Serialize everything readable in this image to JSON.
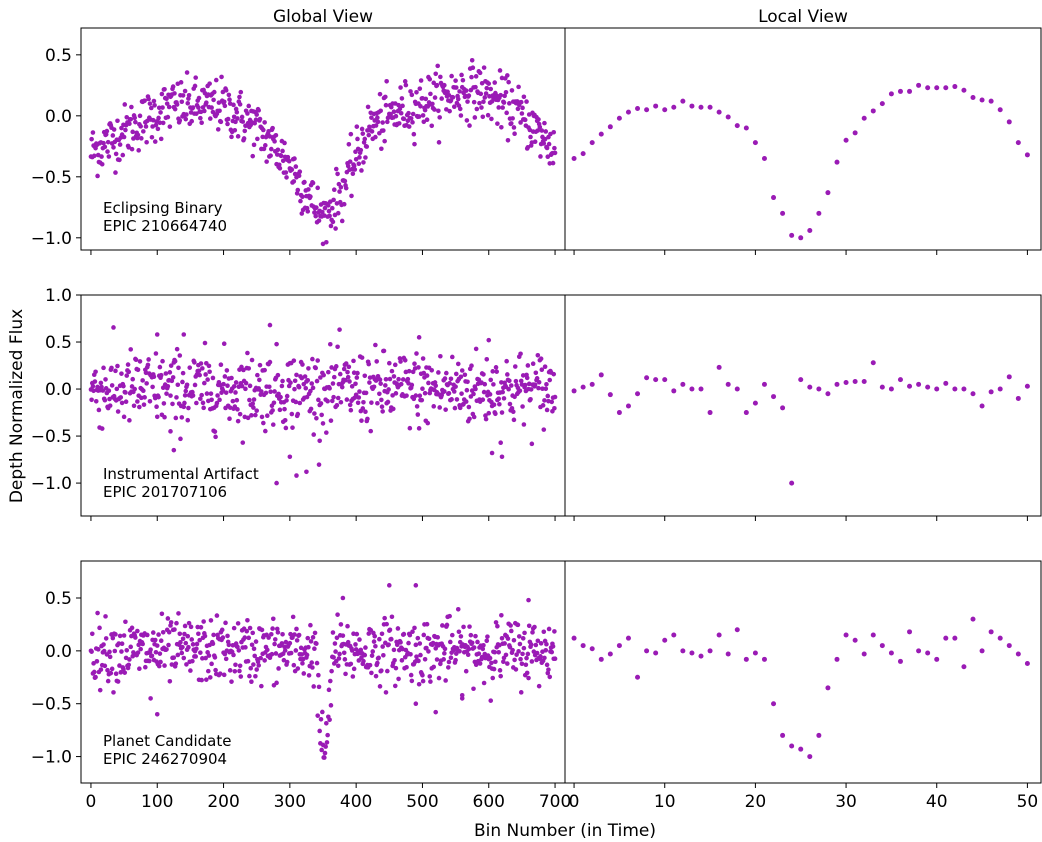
{
  "chart_data": {
    "type": "scatter",
    "marker_color": "#9a1bb5",
    "xlabel": "Bin Number (in Time)",
    "ylabel": "Depth Normalized Flux",
    "column_titles": [
      "Global View",
      "Local View"
    ],
    "global_xticks": [
      0,
      100,
      200,
      300,
      400,
      500,
      600,
      700
    ],
    "local_xticks": [
      0,
      10,
      20,
      30,
      40,
      50
    ],
    "global_xlim": [
      -15,
      715
    ],
    "local_xlim": [
      -1,
      51.5
    ],
    "panels": [
      {
        "label_line1": "Eclipsing Binary",
        "label_line2": "EPIC 210664740",
        "ylim": [
          -1.1,
          0.72
        ],
        "yticks": [
          0.5,
          0.0,
          -0.5,
          -1.0
        ],
        "ytick_labels": [
          "0.5",
          "0.0",
          "−0.5",
          "−1.0"
        ],
        "global_trend": [
          [
            0,
            -0.3
          ],
          [
            60,
            -0.1
          ],
          [
            120,
            0.08
          ],
          [
            200,
            0.08
          ],
          [
            250,
            -0.1
          ],
          [
            300,
            -0.4
          ],
          [
            350,
            -0.85
          ],
          [
            380,
            -0.6
          ],
          [
            420,
            -0.1
          ],
          [
            470,
            0.05
          ],
          [
            520,
            0.15
          ],
          [
            580,
            0.22
          ],
          [
            640,
            0.05
          ],
          [
            700,
            -0.28
          ]
        ],
        "global_scatter": 0.11,
        "local_x": [
          0,
          1,
          2,
          3,
          4,
          5,
          6,
          7,
          8,
          9,
          10,
          11,
          12,
          13,
          14,
          15,
          16,
          17,
          18,
          19,
          20,
          21,
          22,
          23,
          24,
          25,
          26,
          27,
          28,
          29,
          30,
          31,
          32,
          33,
          34,
          35,
          36,
          37,
          38,
          39,
          40,
          41,
          42,
          43,
          44,
          45,
          46,
          47,
          48,
          49,
          50
        ],
        "local_y": [
          -0.35,
          -0.31,
          -0.22,
          -0.15,
          -0.09,
          -0.02,
          0.03,
          0.06,
          0.05,
          0.08,
          0.05,
          0.07,
          0.12,
          0.08,
          0.07,
          0.07,
          0.03,
          -0.01,
          -0.08,
          -0.1,
          -0.22,
          -0.35,
          -0.67,
          -0.8,
          -0.98,
          -1.0,
          -0.94,
          -0.8,
          -0.63,
          -0.38,
          -0.2,
          -0.14,
          -0.02,
          0.04,
          0.1,
          0.18,
          0.2,
          0.2,
          0.25,
          0.23,
          0.23,
          0.23,
          0.24,
          0.21,
          0.15,
          0.13,
          0.12,
          0.05,
          -0.05,
          -0.22,
          -0.32
        ]
      },
      {
        "label_line1": "Instrumental Artifact",
        "label_line2": "EPIC 201707106",
        "ylim": [
          -1.35,
          1.0
        ],
        "yticks": [
          1.0,
          0.5,
          0.0,
          -0.5,
          -1.0
        ],
        "ytick_labels": [
          "1.0",
          "0.5",
          "0.0",
          "−0.5",
          "−1.0"
        ],
        "global_trend": [
          [
            0,
            0.0
          ],
          [
            700,
            0.0
          ]
        ],
        "global_scatter": 0.2,
        "global_outliers": [
          [
            100,
            0.58
          ],
          [
            140,
            0.58
          ],
          [
            270,
            0.68
          ],
          [
            120,
            -0.45
          ],
          [
            125,
            -0.65
          ],
          [
            280,
            -1.0
          ],
          [
            300,
            -0.72
          ],
          [
            310,
            -0.92
          ],
          [
            325,
            -0.88
          ],
          [
            345,
            -0.55
          ],
          [
            495,
            0.55
          ],
          [
            600,
            0.52
          ],
          [
            605,
            -0.68
          ],
          [
            620,
            -0.72
          ]
        ],
        "local_x": [
          0,
          1,
          2,
          3,
          4,
          5,
          6,
          7,
          8,
          9,
          10,
          11,
          12,
          13,
          14,
          15,
          16,
          17,
          18,
          19,
          20,
          21,
          22,
          23,
          24,
          25,
          26,
          27,
          28,
          29,
          30,
          31,
          32,
          33,
          34,
          35,
          36,
          37,
          38,
          39,
          40,
          41,
          42,
          43,
          44,
          45,
          46,
          47,
          48,
          49,
          50
        ],
        "local_y": [
          -0.02,
          0.02,
          0.05,
          0.15,
          -0.06,
          -0.25,
          -0.18,
          -0.05,
          0.12,
          0.1,
          0.1,
          -0.02,
          0.05,
          0.0,
          0.0,
          -0.25,
          0.23,
          0.05,
          0.0,
          -0.25,
          -0.15,
          0.05,
          -0.08,
          -0.2,
          -1.0,
          0.1,
          0.02,
          0.0,
          -0.05,
          0.05,
          0.07,
          0.08,
          0.08,
          0.28,
          0.02,
          0.0,
          0.1,
          0.03,
          0.05,
          0.02,
          0.0,
          0.06,
          0.0,
          0.0,
          -0.05,
          -0.18,
          -0.03,
          0.0,
          0.13,
          -0.1,
          0.03
        ]
      },
      {
        "label_line1": "Planet Candidate",
        "label_line2": "EPIC 246270904",
        "ylim": [
          -1.25,
          0.85
        ],
        "yticks": [
          0.5,
          0.0,
          -0.5,
          -1.0
        ],
        "ytick_labels": [
          "0.5",
          "0.0",
          "−0.5",
          "−1.0"
        ],
        "global_trend": [
          [
            0,
            0.0
          ],
          [
            340,
            0.0
          ],
          [
            345,
            -0.75
          ],
          [
            352,
            -0.95
          ],
          [
            358,
            -0.75
          ],
          [
            365,
            0.0
          ],
          [
            700,
            0.0
          ]
        ],
        "global_scatter": 0.15,
        "global_outliers": [
          [
            90,
            -0.45
          ],
          [
            100,
            -0.6
          ],
          [
            380,
            0.5
          ],
          [
            450,
            0.62
          ],
          [
            490,
            0.62
          ],
          [
            490,
            -0.5
          ],
          [
            520,
            -0.58
          ],
          [
            560,
            -0.42
          ],
          [
            660,
            0.48
          ]
        ],
        "local_x": [
          0,
          1,
          2,
          3,
          4,
          5,
          6,
          7,
          8,
          9,
          10,
          11,
          12,
          13,
          14,
          15,
          16,
          17,
          18,
          19,
          20,
          21,
          22,
          23,
          24,
          25,
          26,
          27,
          28,
          29,
          30,
          31,
          32,
          33,
          34,
          35,
          36,
          37,
          38,
          39,
          40,
          41,
          42,
          43,
          44,
          45,
          46,
          47,
          48,
          49,
          50
        ],
        "local_y": [
          0.12,
          0.05,
          0.02,
          -0.08,
          -0.03,
          0.05,
          0.12,
          -0.25,
          0.0,
          -0.02,
          0.1,
          0.15,
          0.0,
          -0.02,
          -0.05,
          0.0,
          0.15,
          -0.03,
          0.2,
          -0.08,
          -0.02,
          -0.08,
          -0.5,
          -0.8,
          -0.9,
          -0.93,
          -1.0,
          -0.8,
          -0.35,
          -0.08,
          0.15,
          0.1,
          -0.03,
          0.15,
          0.05,
          -0.02,
          -0.1,
          0.18,
          0.0,
          -0.02,
          -0.08,
          0.12,
          0.12,
          -0.15,
          0.3,
          0.0,
          0.18,
          0.12,
          0.05,
          -0.03,
          -0.12
        ]
      }
    ]
  }
}
